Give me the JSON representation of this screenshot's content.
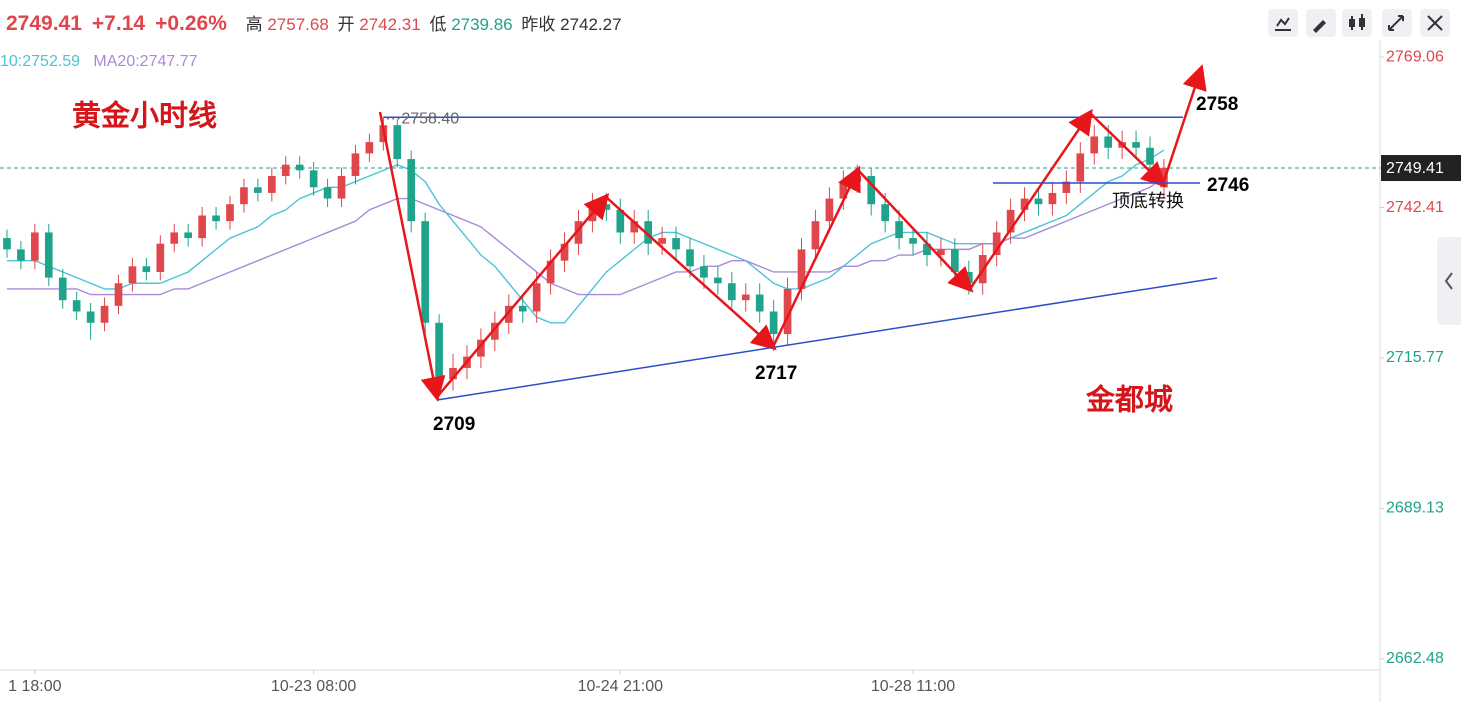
{
  "header": {
    "price_change": "+7.14",
    "pct_change": "+0.26%",
    "high_label": "高",
    "high": 2757.68,
    "open_label": "开",
    "open": 2742.31,
    "low_label": "低",
    "low": 2739.86,
    "prev_close_label": "昨收",
    "prev_close": 2742.27,
    "ma10_label": "10:2752.59",
    "ma20_label": "MA20:2747.77"
  },
  "chart_data": {
    "type": "candlestick",
    "current_price": 2749.41,
    "up_color": "#e0474c",
    "down_color": "#1fa38a",
    "xlim": [
      -0.5,
      98.5
    ],
    "xticks": [
      {
        "value": 2,
        "label": "1 18:00"
      },
      {
        "value": 22,
        "label": "10-23 08:00"
      },
      {
        "value": 44,
        "label": "10-24 21:00"
      },
      {
        "value": 65,
        "label": "10-28 11:00"
      }
    ],
    "ylim": [
      2660.5,
      2771.2
    ],
    "yticks": [
      2769.06,
      2742.41,
      2715.77,
      2689.13,
      2662.48
    ],
    "open": [
      2737,
      2735,
      2733,
      2738,
      2730,
      2726,
      2724,
      2722,
      2725,
      2729,
      2732,
      2731,
      2736,
      2738,
      2737,
      2741,
      2740,
      2743,
      2746,
      2745,
      2748,
      2750,
      2749,
      2746,
      2744,
      2748,
      2752,
      2754,
      2757,
      2751,
      2740,
      2722,
      2712,
      2714,
      2716,
      2719,
      2722,
      2725,
      2724,
      2729,
      2733,
      2736,
      2740,
      2743,
      2742,
      2738,
      2740,
      2736,
      2737,
      2735,
      2732,
      2730,
      2729,
      2726,
      2727,
      2724,
      2720,
      2728,
      2735,
      2740,
      2744,
      2747,
      2748,
      2743,
      2740,
      2737,
      2736,
      2734,
      2735,
      2731,
      2729,
      2734,
      2738,
      2742,
      2744,
      2743,
      2745,
      2747,
      2752,
      2755,
      2753,
      2754,
      2753,
      2746
    ],
    "high": [
      2738.5,
      2736.5,
      2739.5,
      2739.5,
      2731.5,
      2727.5,
      2725.5,
      2726.5,
      2730.5,
      2733.5,
      2733.5,
      2737.5,
      2739.5,
      2739.5,
      2742.5,
      2742.5,
      2744.5,
      2747.5,
      2747.5,
      2749.5,
      2751.5,
      2751.5,
      2750.5,
      2747.5,
      2749.5,
      2753.5,
      2755.5,
      2758.4,
      2758,
      2752.5,
      2741.5,
      2723.5,
      2716.5,
      2718,
      2721,
      2724,
      2727,
      2727,
      2731,
      2735,
      2738,
      2742,
      2745,
      2745,
      2744,
      2742,
      2742,
      2739,
      2739,
      2737,
      2734,
      2732,
      2731,
      2729,
      2729,
      2726,
      2730,
      2737,
      2742,
      2746,
      2749,
      2750,
      2749.5,
      2745,
      2742,
      2739,
      2738,
      2737,
      2737,
      2733,
      2736,
      2740,
      2744,
      2746,
      2746,
      2747,
      2749,
      2754,
      2757,
      2757,
      2756,
      2756,
      2755,
      2751
    ],
    "low": [
      2733.5,
      2731.5,
      2731.5,
      2728.5,
      2724.5,
      2722.5,
      2719,
      2720.5,
      2723.5,
      2727.5,
      2729.5,
      2729.5,
      2734.5,
      2735.5,
      2735.5,
      2738.5,
      2738.5,
      2741.5,
      2743.5,
      2743.5,
      2746.5,
      2747.5,
      2744.5,
      2742.5,
      2742.5,
      2746.5,
      2750.5,
      2752.5,
      2749.5,
      2738,
      2719,
      2709,
      2710,
      2712,
      2714,
      2717,
      2720,
      2722,
      2722,
      2727,
      2731,
      2734,
      2738,
      2740,
      2736,
      2736,
      2734,
      2734,
      2733,
      2730,
      2728,
      2727,
      2724,
      2724,
      2722,
      2717,
      2718,
      2726,
      2733,
      2738,
      2742,
      2745,
      2741,
      2738,
      2735,
      2734,
      2732,
      2732,
      2729,
      2727,
      2727,
      2732,
      2736,
      2740,
      2741,
      2741,
      2743,
      2745,
      2750,
      2751,
      2751,
      2751,
      2748,
      2744
    ],
    "close": [
      2735,
      2733,
      2738,
      2730,
      2726,
      2724,
      2722,
      2725,
      2729,
      2732,
      2731,
      2736,
      2738,
      2737,
      2741,
      2740,
      2743,
      2746,
      2745,
      2748,
      2750,
      2749,
      2746,
      2744,
      2748,
      2752,
      2754,
      2757,
      2751,
      2740,
      2722,
      2712,
      2714,
      2716,
      2719,
      2722,
      2725,
      2724,
      2729,
      2733,
      2736,
      2740,
      2743,
      2742,
      2738,
      2740,
      2736,
      2737,
      2735,
      2732,
      2730,
      2729,
      2726,
      2727,
      2724,
      2720,
      2728,
      2735,
      2740,
      2744,
      2747,
      2748,
      2743,
      2740,
      2737,
      2736,
      2734,
      2735,
      2731,
      2729,
      2734,
      2738,
      2742,
      2744,
      2743,
      2745,
      2747,
      2752,
      2755,
      2753,
      2754,
      2753,
      2750,
      2749.41
    ],
    "ma_lines": [
      {
        "color": "#4cc3d9",
        "values": [
          2733,
          2733,
          2733,
          2732,
          2731,
          2730,
          2729,
          2728,
          2728,
          2729,
          2729,
          2729,
          2730,
          2731,
          2733,
          2735,
          2737,
          2738,
          2739,
          2741,
          2742,
          2744,
          2745,
          2746,
          2746,
          2747,
          2748,
          2749,
          2750,
          2749,
          2747,
          2743,
          2740,
          2737,
          2734,
          2732,
          2729,
          2726,
          2723,
          2722,
          2722,
          2725,
          2728,
          2731,
          2733,
          2735,
          2737,
          2738,
          2738,
          2737,
          2736,
          2735,
          2734,
          2733,
          2731,
          2729,
          2728,
          2728,
          2729,
          2730,
          2732,
          2734,
          2736,
          2737,
          2738,
          2738,
          2738,
          2737,
          2736,
          2736,
          2736,
          2736,
          2737,
          2738,
          2739,
          2740,
          2741,
          2743,
          2745,
          2747,
          2748,
          2750,
          2751,
          2752.59
        ]
      },
      {
        "color": "#a98ad6",
        "values": [
          2728,
          2728,
          2728,
          2728,
          2728,
          2728,
          2727,
          2727,
          2727,
          2727,
          2727,
          2727,
          2728,
          2728,
          2729,
          2730,
          2731,
          2732,
          2733,
          2734,
          2735,
          2736,
          2737,
          2738,
          2739,
          2740,
          2742,
          2743,
          2744,
          2744,
          2743,
          2742,
          2741,
          2740,
          2739,
          2737,
          2735,
          2733,
          2731,
          2729,
          2728,
          2727,
          2727,
          2727,
          2727,
          2728,
          2729,
          2730,
          2731,
          2731,
          2732,
          2732,
          2733,
          2733,
          2732,
          2731,
          2731,
          2731,
          2731,
          2731,
          2732,
          2732,
          2733,
          2733,
          2734,
          2734,
          2735,
          2735,
          2735,
          2735,
          2736,
          2736,
          2737,
          2737,
          2738,
          2739,
          2740,
          2741,
          2742,
          2743,
          2744,
          2745,
          2746,
          2747.77
        ]
      }
    ],
    "hline": {
      "value": 2758.4,
      "label": "⋯2758.40"
    },
    "annotations": {
      "title": "黄金小时线",
      "brand": "金都城",
      "turn": "顶底转换",
      "levels": [
        2709,
        2717,
        2758,
        2746
      ]
    }
  }
}
